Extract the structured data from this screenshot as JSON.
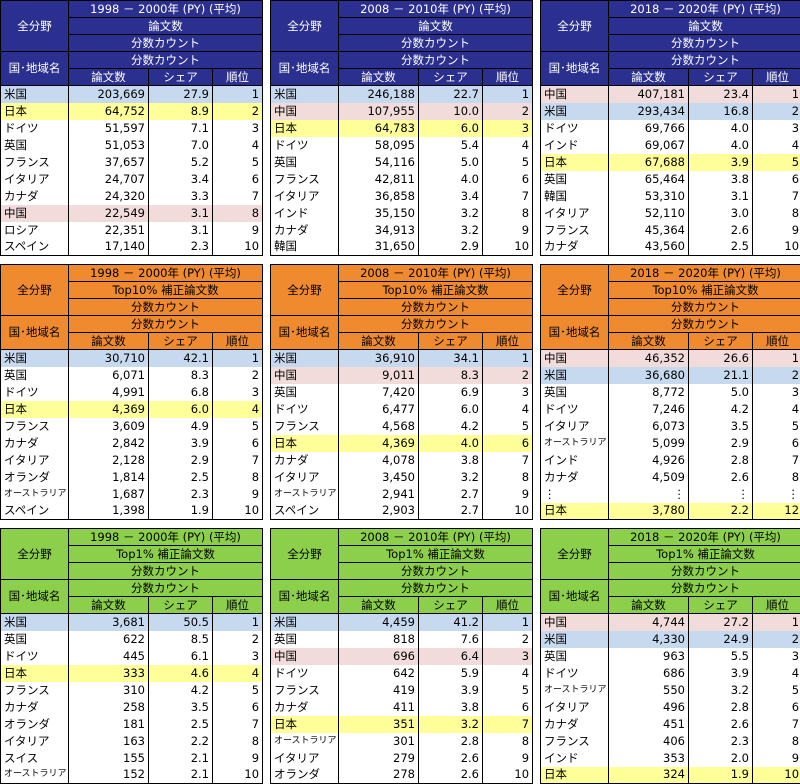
{
  "header": {
    "all_fields": "全分野",
    "country_region": "国･地域名",
    "fractional_count": "分数カウント",
    "col_papers": "論文数",
    "col_share": "シェア",
    "col_rank": "順位"
  },
  "rows": [
    {
      "color": "blue",
      "metric": "論文数",
      "tables": [
        {
          "period": "1998 － 2000年 (PY) (平均)",
          "data": [
            {
              "country": "米国",
              "papers": "203,669",
              "share": "27.9",
              "rank": "1",
              "hl": "b"
            },
            {
              "country": "日本",
              "papers": "64,752",
              "share": "8.9",
              "rank": "2",
              "hl": "y"
            },
            {
              "country": "ドイツ",
              "papers": "51,597",
              "share": "7.1",
              "rank": "3",
              "hl": ""
            },
            {
              "country": "英国",
              "papers": "51,053",
              "share": "7.0",
              "rank": "4",
              "hl": ""
            },
            {
              "country": "フランス",
              "papers": "37,657",
              "share": "5.2",
              "rank": "5",
              "hl": ""
            },
            {
              "country": "イタリア",
              "papers": "24,707",
              "share": "3.4",
              "rank": "6",
              "hl": ""
            },
            {
              "country": "カナダ",
              "papers": "24,320",
              "share": "3.3",
              "rank": "7",
              "hl": ""
            },
            {
              "country": "中国",
              "papers": "22,549",
              "share": "3.1",
              "rank": "8",
              "hl": "p"
            },
            {
              "country": "ロシア",
              "papers": "22,351",
              "share": "3.1",
              "rank": "9",
              "hl": ""
            },
            {
              "country": "スペイン",
              "papers": "17,140",
              "share": "2.3",
              "rank": "10",
              "hl": ""
            }
          ]
        },
        {
          "period": "2008 － 2010年 (PY) (平均)",
          "data": [
            {
              "country": "米国",
              "papers": "246,188",
              "share": "22.7",
              "rank": "1",
              "hl": "b"
            },
            {
              "country": "中国",
              "papers": "107,955",
              "share": "10.0",
              "rank": "2",
              "hl": "p"
            },
            {
              "country": "日本",
              "papers": "64,783",
              "share": "6.0",
              "rank": "3",
              "hl": "y"
            },
            {
              "country": "ドイツ",
              "papers": "58,095",
              "share": "5.4",
              "rank": "4",
              "hl": ""
            },
            {
              "country": "英国",
              "papers": "54,116",
              "share": "5.0",
              "rank": "5",
              "hl": ""
            },
            {
              "country": "フランス",
              "papers": "42,811",
              "share": "4.0",
              "rank": "6",
              "hl": ""
            },
            {
              "country": "イタリア",
              "papers": "36,858",
              "share": "3.4",
              "rank": "7",
              "hl": ""
            },
            {
              "country": "インド",
              "papers": "35,150",
              "share": "3.2",
              "rank": "8",
              "hl": ""
            },
            {
              "country": "カナダ",
              "papers": "34,913",
              "share": "3.2",
              "rank": "9",
              "hl": ""
            },
            {
              "country": "韓国",
              "papers": "31,650",
              "share": "2.9",
              "rank": "10",
              "hl": ""
            }
          ]
        },
        {
          "period": "2018 － 2020年 (PY) (平均)",
          "data": [
            {
              "country": "中国",
              "papers": "407,181",
              "share": "23.4",
              "rank": "1",
              "hl": "p"
            },
            {
              "country": "米国",
              "papers": "293,434",
              "share": "16.8",
              "rank": "2",
              "hl": "b"
            },
            {
              "country": "ドイツ",
              "papers": "69,766",
              "share": "4.0",
              "rank": "3",
              "hl": ""
            },
            {
              "country": "インド",
              "papers": "69,067",
              "share": "4.0",
              "rank": "4",
              "hl": ""
            },
            {
              "country": "日本",
              "papers": "67,688",
              "share": "3.9",
              "rank": "5",
              "hl": "y"
            },
            {
              "country": "英国",
              "papers": "65,464",
              "share": "3.8",
              "rank": "6",
              "hl": ""
            },
            {
              "country": "韓国",
              "papers": "53,310",
              "share": "3.1",
              "rank": "7",
              "hl": ""
            },
            {
              "country": "イタリア",
              "papers": "52,110",
              "share": "3.0",
              "rank": "8",
              "hl": ""
            },
            {
              "country": "フランス",
              "papers": "45,364",
              "share": "2.6",
              "rank": "9",
              "hl": ""
            },
            {
              "country": "カナダ",
              "papers": "43,560",
              "share": "2.5",
              "rank": "10",
              "hl": ""
            }
          ]
        }
      ]
    },
    {
      "color": "orange",
      "metric": "Top10% 補正論文数",
      "tables": [
        {
          "period": "1998 － 2000年 (PY) (平均)",
          "data": [
            {
              "country": "米国",
              "papers": "30,710",
              "share": "42.1",
              "rank": "1",
              "hl": "b"
            },
            {
              "country": "英国",
              "papers": "6,071",
              "share": "8.3",
              "rank": "2",
              "hl": ""
            },
            {
              "country": "ドイツ",
              "papers": "4,991",
              "share": "6.8",
              "rank": "3",
              "hl": ""
            },
            {
              "country": "日本",
              "papers": "4,369",
              "share": "6.0",
              "rank": "4",
              "hl": "y"
            },
            {
              "country": "フランス",
              "papers": "3,609",
              "share": "4.9",
              "rank": "5",
              "hl": ""
            },
            {
              "country": "カナダ",
              "papers": "2,842",
              "share": "3.9",
              "rank": "6",
              "hl": ""
            },
            {
              "country": "イタリア",
              "papers": "2,128",
              "share": "2.9",
              "rank": "7",
              "hl": ""
            },
            {
              "country": "オランダ",
              "papers": "1,814",
              "share": "2.5",
              "rank": "8",
              "hl": ""
            },
            {
              "country": "オーストラリア",
              "papers": "1,687",
              "share": "2.3",
              "rank": "9",
              "hl": ""
            },
            {
              "country": "スペイン",
              "papers": "1,398",
              "share": "1.9",
              "rank": "10",
              "hl": ""
            }
          ]
        },
        {
          "period": "2008 － 2010年 (PY) (平均)",
          "data": [
            {
              "country": "米国",
              "papers": "36,910",
              "share": "34.1",
              "rank": "1",
              "hl": "b"
            },
            {
              "country": "中国",
              "papers": "9,011",
              "share": "8.3",
              "rank": "2",
              "hl": "p"
            },
            {
              "country": "英国",
              "papers": "7,420",
              "share": "6.9",
              "rank": "3",
              "hl": ""
            },
            {
              "country": "ドイツ",
              "papers": "6,477",
              "share": "6.0",
              "rank": "4",
              "hl": ""
            },
            {
              "country": "フランス",
              "papers": "4,568",
              "share": "4.2",
              "rank": "5",
              "hl": ""
            },
            {
              "country": "日本",
              "papers": "4,369",
              "share": "4.0",
              "rank": "6",
              "hl": "y"
            },
            {
              "country": "カナダ",
              "papers": "4,078",
              "share": "3.8",
              "rank": "7",
              "hl": ""
            },
            {
              "country": "イタリア",
              "papers": "3,450",
              "share": "3.2",
              "rank": "8",
              "hl": ""
            },
            {
              "country": "オーストラリア",
              "papers": "2,941",
              "share": "2.7",
              "rank": "9",
              "hl": ""
            },
            {
              "country": "スペイン",
              "papers": "2,903",
              "share": "2.7",
              "rank": "10",
              "hl": ""
            }
          ]
        },
        {
          "period": "2018 － 2020年 (PY) (平均)",
          "data": [
            {
              "country": "中国",
              "papers": "46,352",
              "share": "26.6",
              "rank": "1",
              "hl": "p"
            },
            {
              "country": "米国",
              "papers": "36,680",
              "share": "21.1",
              "rank": "2",
              "hl": "b"
            },
            {
              "country": "英国",
              "papers": "8,772",
              "share": "5.0",
              "rank": "3",
              "hl": ""
            },
            {
              "country": "ドイツ",
              "papers": "7,246",
              "share": "4.2",
              "rank": "4",
              "hl": ""
            },
            {
              "country": "イタリア",
              "papers": "6,073",
              "share": "3.5",
              "rank": "5",
              "hl": ""
            },
            {
              "country": "オーストラリア",
              "papers": "5,099",
              "share": "2.9",
              "rank": "6",
              "hl": ""
            },
            {
              "country": "インド",
              "papers": "4,926",
              "share": "2.8",
              "rank": "7",
              "hl": ""
            },
            {
              "country": "カナダ",
              "papers": "4,509",
              "share": "2.6",
              "rank": "8",
              "hl": ""
            },
            {
              "country": "⋮",
              "papers": "⋮",
              "share": "⋮",
              "rank": "⋮",
              "hl": ""
            },
            {
              "country": "日本",
              "papers": "3,780",
              "share": "2.2",
              "rank": "12",
              "hl": "y"
            }
          ]
        }
      ]
    },
    {
      "color": "green",
      "metric": "Top1% 補正論文数",
      "tables": [
        {
          "period": "1998 － 2000年 (PY) (平均)",
          "data": [
            {
              "country": "米国",
              "papers": "3,681",
              "share": "50.5",
              "rank": "1",
              "hl": "b"
            },
            {
              "country": "英国",
              "papers": "622",
              "share": "8.5",
              "rank": "2",
              "hl": ""
            },
            {
              "country": "ドイツ",
              "papers": "445",
              "share": "6.1",
              "rank": "3",
              "hl": ""
            },
            {
              "country": "日本",
              "papers": "333",
              "share": "4.6",
              "rank": "4",
              "hl": "y"
            },
            {
              "country": "フランス",
              "papers": "310",
              "share": "4.2",
              "rank": "5",
              "hl": ""
            },
            {
              "country": "カナダ",
              "papers": "258",
              "share": "3.5",
              "rank": "6",
              "hl": ""
            },
            {
              "country": "オランダ",
              "papers": "181",
              "share": "2.5",
              "rank": "7",
              "hl": ""
            },
            {
              "country": "イタリア",
              "papers": "163",
              "share": "2.2",
              "rank": "8",
              "hl": ""
            },
            {
              "country": "スイス",
              "papers": "155",
              "share": "2.1",
              "rank": "9",
              "hl": ""
            },
            {
              "country": "オーストラリア",
              "papers": "152",
              "share": "2.1",
              "rank": "10",
              "hl": ""
            }
          ]
        },
        {
          "period": "2008 － 2010年 (PY) (平均)",
          "data": [
            {
              "country": "米国",
              "papers": "4,459",
              "share": "41.2",
              "rank": "1",
              "hl": "b"
            },
            {
              "country": "英国",
              "papers": "818",
              "share": "7.6",
              "rank": "2",
              "hl": ""
            },
            {
              "country": "中国",
              "papers": "696",
              "share": "6.4",
              "rank": "3",
              "hl": "p"
            },
            {
              "country": "ドイツ",
              "papers": "642",
              "share": "5.9",
              "rank": "4",
              "hl": ""
            },
            {
              "country": "フランス",
              "papers": "419",
              "share": "3.9",
              "rank": "5",
              "hl": ""
            },
            {
              "country": "カナダ",
              "papers": "411",
              "share": "3.8",
              "rank": "6",
              "hl": ""
            },
            {
              "country": "日本",
              "papers": "351",
              "share": "3.2",
              "rank": "7",
              "hl": "y"
            },
            {
              "country": "オーストラリア",
              "papers": "301",
              "share": "2.8",
              "rank": "8",
              "hl": ""
            },
            {
              "country": "イタリア",
              "papers": "279",
              "share": "2.6",
              "rank": "9",
              "hl": ""
            },
            {
              "country": "オランダ",
              "papers": "278",
              "share": "2.6",
              "rank": "10",
              "hl": ""
            }
          ]
        },
        {
          "period": "2018 － 2020年 (PY) (平均)",
          "data": [
            {
              "country": "中国",
              "papers": "4,744",
              "share": "27.2",
              "rank": "1",
              "hl": "p"
            },
            {
              "country": "米国",
              "papers": "4,330",
              "share": "24.9",
              "rank": "2",
              "hl": "b"
            },
            {
              "country": "英国",
              "papers": "963",
              "share": "5.5",
              "rank": "3",
              "hl": ""
            },
            {
              "country": "ドイツ",
              "papers": "686",
              "share": "3.9",
              "rank": "4",
              "hl": ""
            },
            {
              "country": "オーストラリア",
              "papers": "550",
              "share": "3.2",
              "rank": "5",
              "hl": ""
            },
            {
              "country": "イタリア",
              "papers": "496",
              "share": "2.8",
              "rank": "6",
              "hl": ""
            },
            {
              "country": "カナダ",
              "papers": "451",
              "share": "2.6",
              "rank": "7",
              "hl": ""
            },
            {
              "country": "フランス",
              "papers": "406",
              "share": "2.3",
              "rank": "8",
              "hl": ""
            },
            {
              "country": "インド",
              "papers": "353",
              "share": "2.0",
              "rank": "9",
              "hl": ""
            },
            {
              "country": "日本",
              "papers": "324",
              "share": "1.9",
              "rank": "10",
              "hl": "y"
            }
          ]
        }
      ]
    }
  ]
}
